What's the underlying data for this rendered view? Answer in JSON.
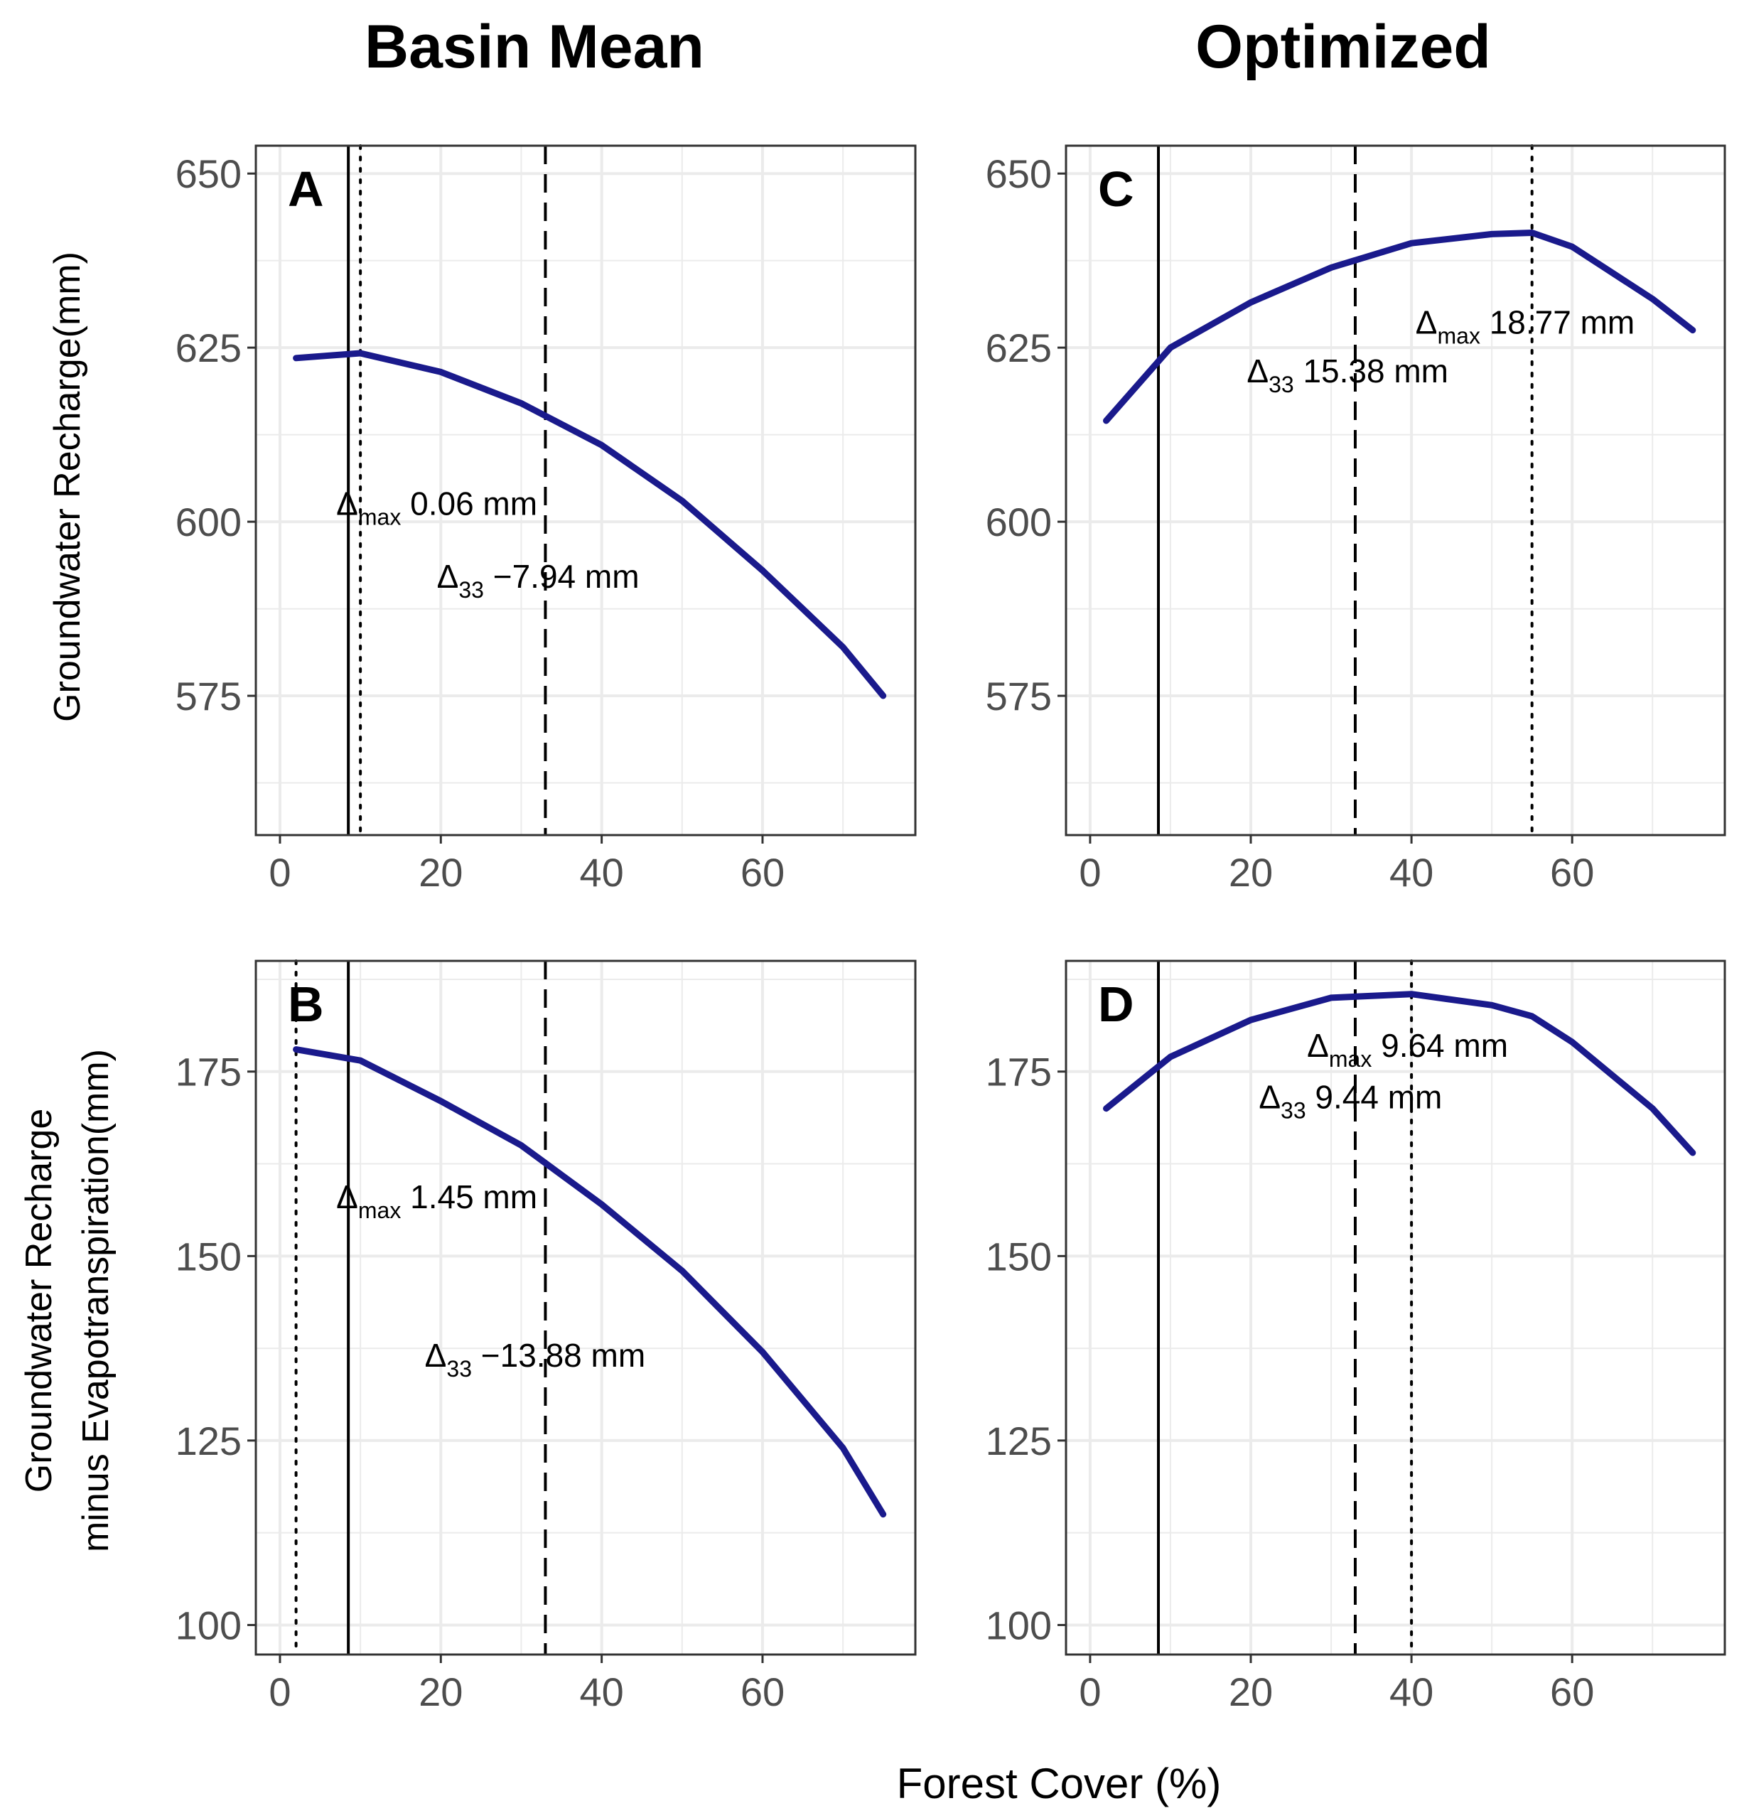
{
  "figure": {
    "column_titles": [
      "Basin Mean",
      "Optimized"
    ],
    "ylabel_top": "Groundwater Recharge(mm)",
    "ylabel_bottom_line1": "Groundwater Recharge",
    "ylabel_bottom_line2": "minus Evapotranspiration(mm)",
    "xlabel": "Forest Cover (%)"
  },
  "colors": {
    "curve": "#1a1a8c",
    "grid": "#ebebeb",
    "frame": "#333333"
  },
  "chart_data": [
    {
      "type": "line",
      "panel": "A",
      "xlim": [
        -3,
        79
      ],
      "ylim": [
        555,
        654
      ],
      "xticks": [
        0,
        20,
        40,
        60
      ],
      "yticks": [
        575,
        600,
        625,
        650
      ],
      "grid": true,
      "x": [
        2,
        10,
        20,
        30,
        40,
        50,
        60,
        70,
        75
      ],
      "y": [
        623.5,
        624.2,
        621.5,
        617,
        611,
        603,
        593,
        582,
        575
      ],
      "vlines": [
        {
          "x": 8.5,
          "style": "solid"
        },
        {
          "x": 10,
          "style": "dotted"
        },
        {
          "x": 33,
          "style": "dashed"
        }
      ],
      "annotations": [
        {
          "sym": "Δ",
          "sub": "max",
          "text": "0.06 mm",
          "x": 7,
          "y": 601
        },
        {
          "sym": "Δ",
          "sub": "33",
          "text": "−7.94 mm",
          "x": 19.5,
          "y": 590.5
        }
      ]
    },
    {
      "type": "line",
      "panel": "B",
      "xlim": [
        -3,
        79
      ],
      "ylim": [
        96,
        190
      ],
      "xticks": [
        0,
        20,
        40,
        60
      ],
      "yticks": [
        100,
        125,
        150,
        175
      ],
      "grid": true,
      "x": [
        2,
        10,
        20,
        30,
        40,
        50,
        60,
        70,
        75
      ],
      "y": [
        178,
        176.5,
        171,
        165,
        157,
        148,
        137,
        124,
        115
      ],
      "vlines": [
        {
          "x": 8.5,
          "style": "solid"
        },
        {
          "x": 2,
          "style": "dotted"
        },
        {
          "x": 33,
          "style": "dashed"
        }
      ],
      "annotations": [
        {
          "sym": "Δ",
          "sub": "max",
          "text": "1.45 mm",
          "x": 7,
          "y": 156.5
        },
        {
          "sym": "Δ",
          "sub": "33",
          "text": "−13.88 mm",
          "x": 18,
          "y": 135
        }
      ]
    },
    {
      "type": "line",
      "panel": "C",
      "xlim": [
        -3,
        79
      ],
      "ylim": [
        555,
        654
      ],
      "xticks": [
        0,
        20,
        40,
        60
      ],
      "yticks": [
        575,
        600,
        625,
        650
      ],
      "grid": true,
      "x": [
        2,
        10,
        20,
        30,
        40,
        50,
        55,
        60,
        70,
        75
      ],
      "y": [
        614.5,
        625,
        631.5,
        636.5,
        640,
        641.3,
        641.5,
        639.5,
        632,
        627.5
      ],
      "vlines": [
        {
          "x": 8.5,
          "style": "solid"
        },
        {
          "x": 55,
          "style": "dotted"
        },
        {
          "x": 33,
          "style": "dashed"
        }
      ],
      "annotations": [
        {
          "sym": "Δ",
          "sub": "max",
          "text": "18.77 mm",
          "x": 40.5,
          "y": 627
        },
        {
          "sym": "Δ",
          "sub": "33",
          "text": "15.38 mm",
          "x": 19.5,
          "y": 620
        }
      ]
    },
    {
      "type": "line",
      "panel": "D",
      "xlim": [
        -3,
        79
      ],
      "ylim": [
        96,
        190
      ],
      "xticks": [
        0,
        20,
        40,
        60
      ],
      "yticks": [
        100,
        125,
        150,
        175
      ],
      "grid": true,
      "x": [
        2,
        10,
        20,
        30,
        40,
        50,
        55,
        60,
        70,
        75
      ],
      "y": [
        170,
        177,
        182,
        185,
        185.5,
        184,
        182.5,
        179,
        170,
        164
      ],
      "vlines": [
        {
          "x": 8.5,
          "style": "solid"
        },
        {
          "x": 40,
          "style": "dotted"
        },
        {
          "x": 33,
          "style": "dashed"
        }
      ],
      "annotations": [
        {
          "sym": "Δ",
          "sub": "max",
          "text": "9.64 mm",
          "x": 27,
          "y": 177
        },
        {
          "sym": "Δ",
          "sub": "33",
          "text": "9.44 mm",
          "x": 21,
          "y": 170
        }
      ]
    }
  ]
}
